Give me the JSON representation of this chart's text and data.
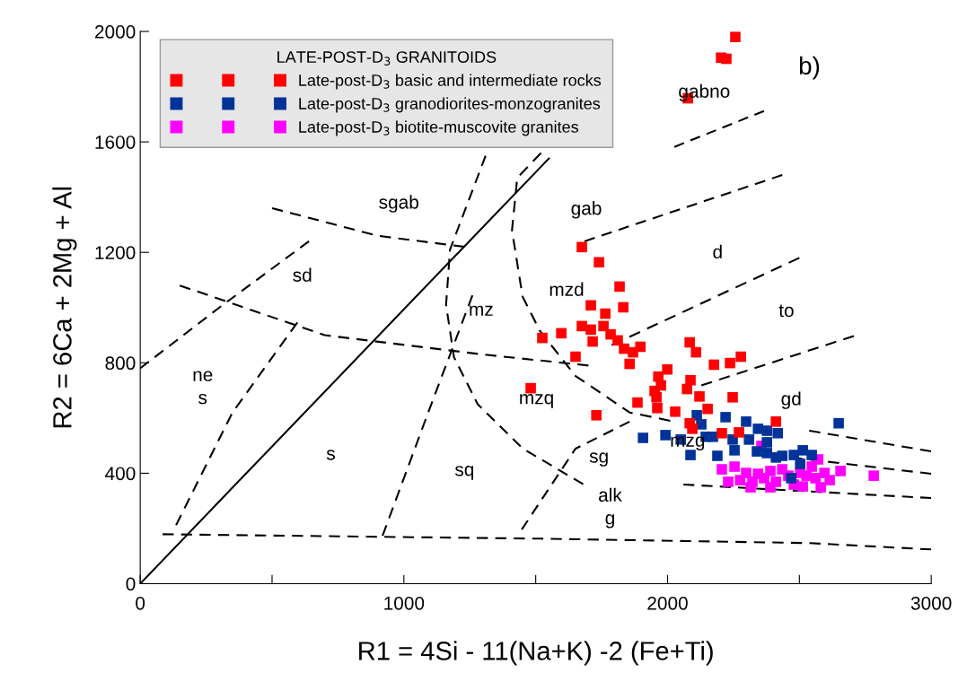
{
  "chart_data": {
    "type": "scatter",
    "xlabel": "R1 = 4Si - 11(Na+K) -2 (Fe+Ti)",
    "ylabel": "R2 = 6Ca + 2Mg + Al",
    "legend_title": "LATE-POST-D$_{3}$ GRANITOIDS",
    "legend": "top left",
    "marker": "square",
    "grid": false,
    "xlim": [
      0,
      3000
    ],
    "ylim": [
      0,
      2000
    ],
    "xticks": [
      0,
      {
        "value": 500,
        "label": null
      },
      1000,
      {
        "value": 1500,
        "label": null
      },
      2000,
      {
        "value": 2500,
        "label": null
      },
      3000
    ],
    "yticks": [
      0,
      400,
      800,
      1200,
      1600,
      2000
    ],
    "series": [
      {
        "name": "Late-post-D$_{3}$ basic and intermediate rocks",
        "color": "#ff0000",
        "x": [
          2257,
          2223,
          2203,
          2077,
          1675,
          1740,
          1818,
          1709,
          1832,
          1764,
          1675,
          1709,
          1757,
          1525,
          1597,
          1716,
          1784,
          1811,
          1835,
          1869,
          1897,
          1651,
          1856,
          2084,
          2108,
          2176,
          2237,
          2278,
          1999,
          1965,
          1975,
          2087,
          1951,
          2074,
          1958,
          2247,
          2121,
          1886,
          1481,
          1730,
          1961,
          2029,
          2152,
          2094,
          2084,
          2206,
          2271,
          2411
        ],
        "values": [
          1980,
          1901,
          1905,
          1758,
          1219,
          1164,
          1076,
          1008,
          1001,
          978,
          933,
          920,
          933,
          890,
          907,
          877,
          903,
          881,
          851,
          838,
          858,
          822,
          796,
          874,
          838,
          793,
          799,
          822,
          776,
          750,
          718,
          737,
          698,
          705,
          675,
          675,
          678,
          656,
          708,
          610,
          636,
          623,
          633,
          561,
          581,
          545,
          548,
          587
        ]
      },
      {
        "name": "Late-post-D$_{3}$ granodiorites-monzogranites",
        "color": "#003399",
        "x": [
          2649,
          2220,
          2298,
          2111,
          2128,
          2145,
          2172,
          1907,
          1992,
          2050,
          2087,
          2189,
          2247,
          2254,
          2309,
          2343,
          2377,
          2418,
          2339,
          2377,
          2411,
          2435,
          2479,
          2513,
          2547,
          2503,
          2469,
          2377
        ],
        "values": [
          581,
          603,
          587,
          610,
          577,
          532,
          532,
          528,
          538,
          522,
          466,
          463,
          522,
          483,
          522,
          561,
          554,
          545,
          479,
          473,
          457,
          463,
          466,
          483,
          466,
          434,
          382,
          512
        ]
      },
      {
        "name": "Late-post-D$_{3}$ biotite-muscovite granites",
        "color": "#ff00ff",
        "x": [
          2206,
          2254,
          2298,
          2343,
          2390,
          2435,
          2356,
          2322,
          2275,
          2230,
          2315,
          2366,
          2411,
          2458,
          2503,
          2527,
          2547,
          2571,
          2561,
          2595,
          2615,
          2581,
          2513,
          2479,
          2656,
          2782,
          2390
        ],
        "values": [
          414,
          424,
          401,
          398,
          408,
          414,
          499,
          369,
          375,
          369,
          349,
          382,
          369,
          391,
          401,
          391,
          424,
          450,
          382,
          401,
          375,
          349,
          352,
          359,
          408,
          391,
          349
        ]
      },
      {
        "type": "line",
        "line_style": "solid",
        "marker": "none",
        "color": "#000000",
        "x": [
          0,
          1550
        ],
        "values": [
          0,
          1540
        ]
      },
      {
        "type": "line",
        "line_style": "dashed",
        "marker": "none",
        "color": "#000000",
        "x": [
          85,
          1515,
          2537,
          3000
        ],
        "values": [
          179,
          163,
          147,
          124
        ]
      },
      {
        "type": "line",
        "line_style": "dashed",
        "marker": "none",
        "color": "#000000",
        "x": [
          0,
          300,
          640
        ],
        "values": [
          780,
          1000,
          1240
        ]
      },
      {
        "type": "line",
        "line_style": "dashed",
        "marker": "none",
        "color": "#000000",
        "x": [
          136,
          350,
          596
        ],
        "values": [
          212,
          620,
          946
        ]
      },
      {
        "type": "line",
        "line_style": "dashed",
        "marker": "none",
        "color": "#000000",
        "x": [
          919,
          1100,
          1260
        ],
        "values": [
          173,
          640,
          1044
        ]
      },
      {
        "type": "line",
        "line_style": "dashed",
        "marker": "none",
        "color": "#000000",
        "x": [
          150,
          700,
          1300,
          1700
        ],
        "values": [
          1080,
          900,
          830,
          790
        ]
      },
      {
        "type": "line",
        "line_style": "dashed",
        "marker": "none",
        "color": "#000000",
        "x": [
          500,
          900,
          1230
        ],
        "values": [
          1360,
          1260,
          1220
        ]
      },
      {
        "type": "line",
        "line_style": "dashed",
        "marker": "none",
        "color": "#000000",
        "x": [
          1520,
          1430,
          1410,
          1450,
          1515,
          1650,
          1856,
          2010
        ],
        "values": [
          1560,
          1470,
          1280,
          1040,
          917,
          753,
          620,
          590
        ]
      },
      {
        "type": "line",
        "line_style": "dashed",
        "marker": "none",
        "color": "#000000",
        "x": [
          1310,
          1175,
          1160,
          1190,
          1280,
          1450,
          1680
        ],
        "values": [
          1550,
          1210,
          1010,
          820,
          650,
          490,
          360
        ]
      },
      {
        "type": "line",
        "line_style": "dashed",
        "marker": "none",
        "color": "#000000",
        "x": [
          1685,
          2435
        ],
        "values": [
          1240,
          1480
        ]
      },
      {
        "type": "line",
        "line_style": "dashed",
        "marker": "none",
        "color": "#000000",
        "x": [
          1788,
          2500
        ],
        "values": [
          864,
          1180
        ]
      },
      {
        "type": "line",
        "line_style": "dashed",
        "marker": "none",
        "color": "#000000",
        "x": [
          2128,
          2707
        ],
        "values": [
          718,
          897
        ]
      },
      {
        "type": "line",
        "line_style": "dashed",
        "marker": "none",
        "color": "#000000",
        "x": [
          2537,
          3000
        ],
        "values": [
          554,
          479
        ]
      },
      {
        "type": "line",
        "line_style": "dashed",
        "marker": "none",
        "color": "#000000",
        "x": [
          2469,
          3000
        ],
        "values": [
          457,
          398
        ]
      },
      {
        "type": "line",
        "line_style": "dashed",
        "marker": "none",
        "color": "#000000",
        "x": [
          2060,
          3000
        ],
        "values": [
          359,
          310
        ]
      },
      {
        "type": "line",
        "line_style": "dashed",
        "marker": "none",
        "color": "#000000",
        "x": [
          1447,
          1651,
          1856
        ],
        "values": [
          196,
          489,
          587
        ]
      },
      {
        "type": "line",
        "line_style": "dashed",
        "marker": "none",
        "color": "#000000",
        "x": [
          2026,
          2366
        ],
        "values": [
          1582,
          1712
        ]
      }
    ],
    "annotations": [
      "sgab",
      "sd",
      "ne\ns",
      "s",
      "sq",
      "mz",
      "mzd",
      "gab",
      "d",
      "to",
      "gd",
      "mzq",
      "mzg",
      "sg",
      "alk\ng",
      "gabno",
      "b)"
    ]
  }
}
